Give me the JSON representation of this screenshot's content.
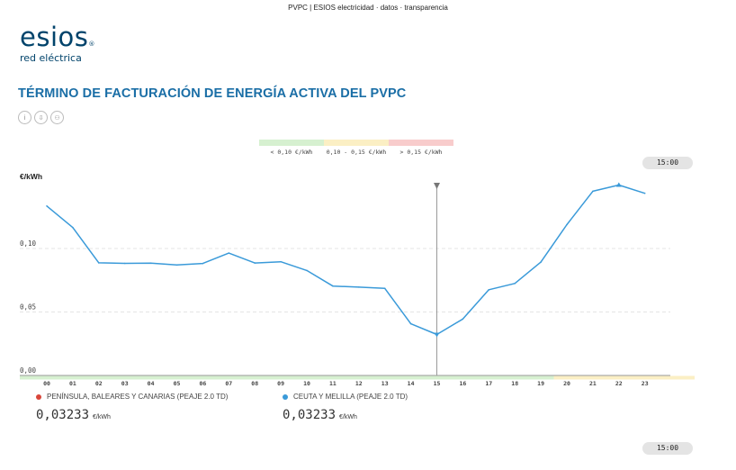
{
  "page": {
    "caption": "PVPC | ESIOS electricidad · datos · transparencia",
    "logo_main": "esios",
    "logo_mark": "®",
    "logo_sub": "red eléctrica",
    "title": "TÉRMINO DE FACTURACIÓN DE ENERGÍA ACTIVA DEL PVPC",
    "icons": [
      "info-icon",
      "download-icon",
      "chart-icon"
    ],
    "icon_glyphs": [
      "i",
      "⇩",
      "⚇"
    ],
    "time_top": "15:00",
    "time_bottom": "15:00"
  },
  "legend": [
    {
      "label": "< 0,10 €/kWh",
      "color": "#d6f0d0"
    },
    {
      "label": "0,10 - 0,15 €/kWh",
      "color": "#fbefc4"
    },
    {
      "label": "> 0,15 €/kWh",
      "color": "#f8cccc"
    }
  ],
  "series_info": [
    {
      "name": "PENÍNSULA, BALEARES Y CANARIAS (PEAJE 2.0 TD)",
      "color": "#d9463a",
      "value": "0,03233",
      "unit": "€/kWh"
    },
    {
      "name": "CEUTA Y MELILLA (PEAJE 2.0 TD)",
      "color": "#3a9ad9",
      "value": "0,03233",
      "unit": "€/kWh"
    }
  ],
  "chart_data": {
    "type": "line",
    "ylabel": "€/kWh",
    "x": [
      "00",
      "01",
      "02",
      "03",
      "04",
      "05",
      "06",
      "07",
      "08",
      "09",
      "10",
      "11",
      "12",
      "13",
      "14",
      "15",
      "16",
      "17",
      "18",
      "19",
      "20",
      "21",
      "22",
      "23"
    ],
    "y_ticks": [
      {
        "value": 0.0,
        "label": "0,00"
      },
      {
        "value": 0.05,
        "label": "0,05"
      },
      {
        "value": 0.1,
        "label": "0,10"
      }
    ],
    "ylim": [
      0,
      0.155
    ],
    "series": [
      {
        "color": "#3a9ad9",
        "values": [
          0.1335,
          0.1165,
          0.0887,
          0.0883,
          0.0885,
          0.087,
          0.0882,
          0.0964,
          0.0886,
          0.0896,
          0.0827,
          0.0704,
          0.0696,
          0.0686,
          0.0407,
          0.0323,
          0.0445,
          0.0675,
          0.0725,
          0.0893,
          0.1188,
          0.1451,
          0.15,
          0.1435
        ]
      }
    ],
    "selected_index": 15,
    "peak_index": 22,
    "grid": true
  }
}
